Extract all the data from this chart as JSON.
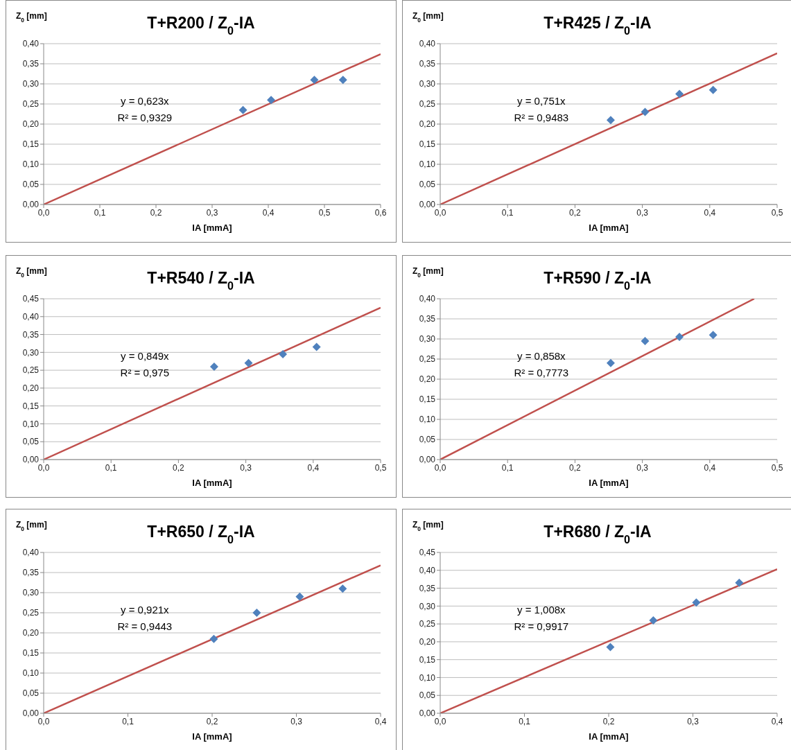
{
  "chart_data": [
    {
      "type": "scatter",
      "title": "T+R200 / Z$_{0}$-IA",
      "xlabel": "IA [mmA]",
      "ylabel": "Z$_{0}$ [mm]",
      "grid": "y",
      "marker": "diamond",
      "xlim": [
        0,
        0.6
      ],
      "xticks": [
        {
          "value": 0,
          "label": "0,0"
        },
        {
          "value": 0.1,
          "label": "0,1"
        },
        {
          "value": 0.2,
          "label": "0,2"
        },
        {
          "value": 0.3,
          "label": "0,3"
        },
        {
          "value": 0.4,
          "label": "0,4"
        },
        {
          "value": 0.5,
          "label": "0,5"
        },
        {
          "value": 0.6,
          "label": "0,6"
        }
      ],
      "ylim": [
        0,
        0.4
      ],
      "yticks": [
        {
          "value": 0,
          "label": "0,00"
        },
        {
          "value": 0.05,
          "label": "0,05"
        },
        {
          "value": 0.1,
          "label": "0,10"
        },
        {
          "value": 0.15,
          "label": "0,15"
        },
        {
          "value": 0.2,
          "label": "0,20"
        },
        {
          "value": 0.25,
          "label": "0,25"
        },
        {
          "value": 0.3,
          "label": "0,30"
        },
        {
          "value": 0.35,
          "label": "0,35"
        },
        {
          "value": 0.4,
          "label": "0,40"
        }
      ],
      "annotations": [
        "y = 0,623x",
        "R² = 0,9329"
      ],
      "series": [
        {
          "color": "#4f81bd",
          "x": [
            0.355,
            0.405,
            0.482,
            0.533
          ],
          "values": [
            0.235,
            0.26,
            0.31,
            0.31
          ]
        },
        {
          "type": "line",
          "color": "#c0504d",
          "marker": "none",
          "x": [
            0,
            0.6
          ],
          "values": [
            0,
            0.374
          ]
        }
      ]
    },
    {
      "type": "scatter",
      "title": "T+R425 / Z$_{0}$-IA",
      "xlabel": "IA [mmA]",
      "ylabel": "Z$_{0}$ [mm]",
      "grid": "y",
      "marker": "diamond",
      "xlim": [
        0,
        0.5
      ],
      "xticks": [
        {
          "value": 0,
          "label": "0,0"
        },
        {
          "value": 0.1,
          "label": "0,1"
        },
        {
          "value": 0.2,
          "label": "0,2"
        },
        {
          "value": 0.3,
          "label": "0,3"
        },
        {
          "value": 0.4,
          "label": "0,4"
        },
        {
          "value": 0.5,
          "label": "0,5"
        }
      ],
      "ylim": [
        0,
        0.4
      ],
      "yticks": [
        {
          "value": 0,
          "label": "0,00"
        },
        {
          "value": 0.05,
          "label": "0,05"
        },
        {
          "value": 0.1,
          "label": "0,10"
        },
        {
          "value": 0.15,
          "label": "0,15"
        },
        {
          "value": 0.2,
          "label": "0,20"
        },
        {
          "value": 0.25,
          "label": "0,25"
        },
        {
          "value": 0.3,
          "label": "0,30"
        },
        {
          "value": 0.35,
          "label": "0,35"
        },
        {
          "value": 0.4,
          "label": "0,40"
        }
      ],
      "annotations": [
        "y = 0,751x",
        "R² = 0,9483"
      ],
      "series": [
        {
          "color": "#4f81bd",
          "x": [
            0.253,
            0.304,
            0.355,
            0.405
          ],
          "values": [
            0.21,
            0.23,
            0.275,
            0.285
          ]
        },
        {
          "type": "line",
          "color": "#c0504d",
          "marker": "none",
          "x": [
            0,
            0.5
          ],
          "values": [
            0,
            0.376
          ]
        }
      ]
    },
    {
      "type": "scatter",
      "title": "T+R540 / Z$_{0}$-IA",
      "xlabel": "IA [mmA]",
      "ylabel": "Z$_{0}$ [mm]",
      "grid": "y",
      "marker": "diamond",
      "xlim": [
        0,
        0.5
      ],
      "xticks": [
        {
          "value": 0,
          "label": "0,0"
        },
        {
          "value": 0.1,
          "label": "0,1"
        },
        {
          "value": 0.2,
          "label": "0,2"
        },
        {
          "value": 0.3,
          "label": "0,3"
        },
        {
          "value": 0.4,
          "label": "0,4"
        },
        {
          "value": 0.5,
          "label": "0,5"
        }
      ],
      "ylim": [
        0,
        0.45
      ],
      "yticks": [
        {
          "value": 0,
          "label": "0,00"
        },
        {
          "value": 0.05,
          "label": "0,05"
        },
        {
          "value": 0.1,
          "label": "0,10"
        },
        {
          "value": 0.15,
          "label": "0,15"
        },
        {
          "value": 0.2,
          "label": "0,20"
        },
        {
          "value": 0.25,
          "label": "0,25"
        },
        {
          "value": 0.3,
          "label": "0,30"
        },
        {
          "value": 0.35,
          "label": "0,35"
        },
        {
          "value": 0.4,
          "label": "0,40"
        },
        {
          "value": 0.45,
          "label": "0,45"
        }
      ],
      "annotations": [
        "y = 0,849x",
        "R² = 0,975"
      ],
      "series": [
        {
          "color": "#4f81bd",
          "x": [
            0.253,
            0.304,
            0.355,
            0.405
          ],
          "values": [
            0.26,
            0.27,
            0.295,
            0.315
          ]
        },
        {
          "type": "line",
          "color": "#c0504d",
          "marker": "none",
          "x": [
            0,
            0.5
          ],
          "values": [
            0,
            0.425
          ]
        }
      ]
    },
    {
      "type": "scatter",
      "title": "T+R590 / Z$_{0}$-IA",
      "xlabel": "IA [mmA]",
      "ylabel": "Z$_{0}$ [mm]",
      "grid": "y",
      "marker": "diamond",
      "xlim": [
        0,
        0.5
      ],
      "xticks": [
        {
          "value": 0,
          "label": "0,0"
        },
        {
          "value": 0.1,
          "label": "0,1"
        },
        {
          "value": 0.2,
          "label": "0,2"
        },
        {
          "value": 0.3,
          "label": "0,3"
        },
        {
          "value": 0.4,
          "label": "0,4"
        },
        {
          "value": 0.5,
          "label": "0,5"
        }
      ],
      "ylim": [
        0,
        0.4
      ],
      "yticks": [
        {
          "value": 0,
          "label": "0,00"
        },
        {
          "value": 0.05,
          "label": "0,05"
        },
        {
          "value": 0.1,
          "label": "0,10"
        },
        {
          "value": 0.15,
          "label": "0,15"
        },
        {
          "value": 0.2,
          "label": "0,20"
        },
        {
          "value": 0.25,
          "label": "0,25"
        },
        {
          "value": 0.3,
          "label": "0,30"
        },
        {
          "value": 0.35,
          "label": "0,35"
        },
        {
          "value": 0.4,
          "label": "0,40"
        }
      ],
      "annotations": [
        "y = 0,858x",
        "R² = 0,7773"
      ],
      "series": [
        {
          "color": "#4f81bd",
          "x": [
            0.253,
            0.304,
            0.355,
            0.405
          ],
          "values": [
            0.24,
            0.295,
            0.305,
            0.31
          ]
        },
        {
          "type": "line",
          "color": "#c0504d",
          "marker": "none",
          "x": [
            0,
            0.466
          ],
          "values": [
            0,
            0.4
          ]
        }
      ]
    },
    {
      "type": "scatter",
      "title": "T+R650 / Z$_{0}$-IA",
      "xlabel": "IA [mmA]",
      "ylabel": "Z$_{0}$ [mm]",
      "grid": "y",
      "marker": "diamond",
      "xlim": [
        0,
        0.4
      ],
      "xticks": [
        {
          "value": 0,
          "label": "0,0"
        },
        {
          "value": 0.1,
          "label": "0,1"
        },
        {
          "value": 0.2,
          "label": "0,2"
        },
        {
          "value": 0.3,
          "label": "0,3"
        },
        {
          "value": 0.4,
          "label": "0,4"
        }
      ],
      "ylim": [
        0,
        0.4
      ],
      "yticks": [
        {
          "value": 0,
          "label": "0,00"
        },
        {
          "value": 0.05,
          "label": "0,05"
        },
        {
          "value": 0.1,
          "label": "0,10"
        },
        {
          "value": 0.15,
          "label": "0,15"
        },
        {
          "value": 0.2,
          "label": "0,20"
        },
        {
          "value": 0.25,
          "label": "0,25"
        },
        {
          "value": 0.3,
          "label": "0,30"
        },
        {
          "value": 0.35,
          "label": "0,35"
        },
        {
          "value": 0.4,
          "label": "0,40"
        }
      ],
      "annotations": [
        "y = 0,921x",
        "R² = 0,9443"
      ],
      "series": [
        {
          "color": "#4f81bd",
          "x": [
            0.202,
            0.253,
            0.304,
            0.355
          ],
          "values": [
            0.185,
            0.25,
            0.29,
            0.31
          ]
        },
        {
          "type": "line",
          "color": "#c0504d",
          "marker": "none",
          "x": [
            0,
            0.4
          ],
          "values": [
            0,
            0.368
          ]
        }
      ]
    },
    {
      "type": "scatter",
      "title": "T+R680 / Z$_{0}$-IA",
      "xlabel": "IA [mmA]",
      "ylabel": "Z$_{0}$ [mm]",
      "grid": "y",
      "marker": "diamond",
      "xlim": [
        0,
        0.4
      ],
      "xticks": [
        {
          "value": 0,
          "label": "0,0"
        },
        {
          "value": 0.1,
          "label": "0,1"
        },
        {
          "value": 0.2,
          "label": "0,2"
        },
        {
          "value": 0.3,
          "label": "0,3"
        },
        {
          "value": 0.4,
          "label": "0,4"
        }
      ],
      "ylim": [
        0,
        0.45
      ],
      "yticks": [
        {
          "value": 0,
          "label": "0,00"
        },
        {
          "value": 0.05,
          "label": "0,05"
        },
        {
          "value": 0.1,
          "label": "0,10"
        },
        {
          "value": 0.15,
          "label": "0,15"
        },
        {
          "value": 0.2,
          "label": "0,20"
        },
        {
          "value": 0.25,
          "label": "0,25"
        },
        {
          "value": 0.3,
          "label": "0,30"
        },
        {
          "value": 0.35,
          "label": "0,35"
        },
        {
          "value": 0.4,
          "label": "0,40"
        },
        {
          "value": 0.45,
          "label": "0,45"
        }
      ],
      "annotations": [
        "y = 1,008x",
        "R² = 0,9917"
      ],
      "series": [
        {
          "color": "#4f81bd",
          "x": [
            0.202,
            0.253,
            0.304,
            0.355
          ],
          "values": [
            0.185,
            0.26,
            0.31,
            0.365
          ]
        },
        {
          "type": "line",
          "color": "#c0504d",
          "marker": "none",
          "x": [
            0,
            0.4
          ],
          "values": [
            0,
            0.403
          ]
        }
      ]
    }
  ]
}
